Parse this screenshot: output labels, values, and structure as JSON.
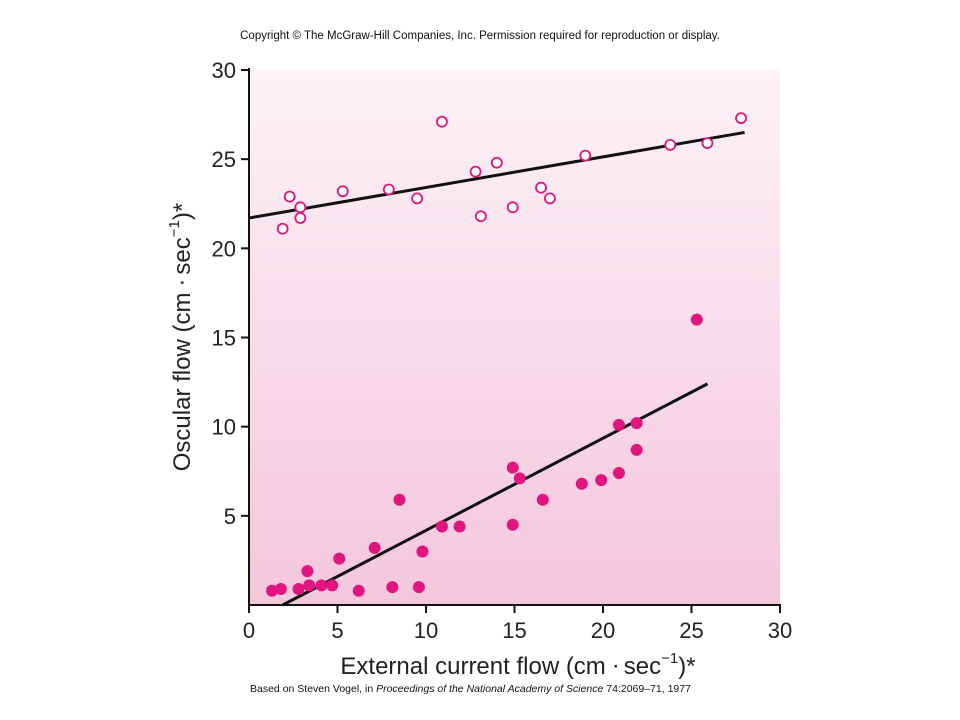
{
  "header": {
    "copyright": "Copyright © The McGraw-Hill Companies, Inc. Permission required for reproduction or display."
  },
  "footer": {
    "credit_prefix": "Based on Steven Vogel, in ",
    "credit_journal": "Proceedings of the National Academy of Science",
    "credit_suffix": " 74:2069–71, 1977"
  },
  "chart_data": {
    "type": "scatter",
    "xlabel_text": "External current flow (cm",
    "xlabel_units": "sec",
    "xlabel_tail": ")*",
    "ylabel_text": "Oscular flow (cm",
    "ylabel_units": "sec",
    "ylabel_tail": ")*",
    "unit_exponent": "−1",
    "xlim": [
      0,
      30
    ],
    "ylim": [
      0,
      30
    ],
    "x_ticks": [
      0,
      5,
      10,
      15,
      20,
      25,
      30
    ],
    "y_ticks": [
      5,
      10,
      15,
      20,
      25,
      30
    ],
    "grid": false,
    "background_gradient": [
      "#f4c6dc",
      "#fdf2f7"
    ],
    "colors": {
      "points": "#e0157f",
      "fit_line": "#111111"
    },
    "series": [
      {
        "marker": "open-circle",
        "points": [
          [
            1.9,
            21.1
          ],
          [
            2.3,
            22.9
          ],
          [
            2.9,
            22.3
          ],
          [
            2.9,
            21.7
          ],
          [
            5.3,
            23.2
          ],
          [
            7.9,
            23.3
          ],
          [
            9.5,
            22.8
          ],
          [
            10.9,
            27.1
          ],
          [
            12.8,
            24.3
          ],
          [
            13.1,
            21.8
          ],
          [
            14.0,
            24.8
          ],
          [
            14.9,
            22.3
          ],
          [
            16.5,
            23.4
          ],
          [
            17.0,
            22.8
          ],
          [
            19.0,
            25.2
          ],
          [
            23.8,
            25.8
          ],
          [
            25.9,
            25.9
          ],
          [
            27.8,
            27.3
          ]
        ],
        "fit": [
          [
            0,
            21.7
          ],
          [
            28,
            26.5
          ]
        ]
      },
      {
        "marker": "filled-circle",
        "points": [
          [
            1.3,
            0.8
          ],
          [
            1.8,
            0.9
          ],
          [
            2.8,
            0.9
          ],
          [
            3.3,
            1.9
          ],
          [
            3.4,
            1.1
          ],
          [
            4.1,
            1.1
          ],
          [
            4.7,
            1.1
          ],
          [
            5.1,
            2.6
          ],
          [
            6.2,
            0.8
          ],
          [
            7.1,
            3.2
          ],
          [
            8.1,
            1.0
          ],
          [
            8.5,
            5.9
          ],
          [
            9.6,
            1.0
          ],
          [
            9.8,
            3.0
          ],
          [
            10.9,
            4.4
          ],
          [
            11.9,
            4.4
          ],
          [
            14.9,
            7.7
          ],
          [
            14.9,
            4.5
          ],
          [
            15.3,
            7.1
          ],
          [
            16.6,
            5.9
          ],
          [
            18.8,
            6.8
          ],
          [
            19.9,
            7.0
          ],
          [
            20.9,
            7.4
          ],
          [
            20.9,
            10.1
          ],
          [
            21.9,
            10.2
          ],
          [
            21.9,
            8.7
          ],
          [
            25.3,
            16.0
          ]
        ],
        "fit": [
          [
            1.9,
            0
          ],
          [
            25.9,
            12.4
          ]
        ]
      }
    ]
  }
}
